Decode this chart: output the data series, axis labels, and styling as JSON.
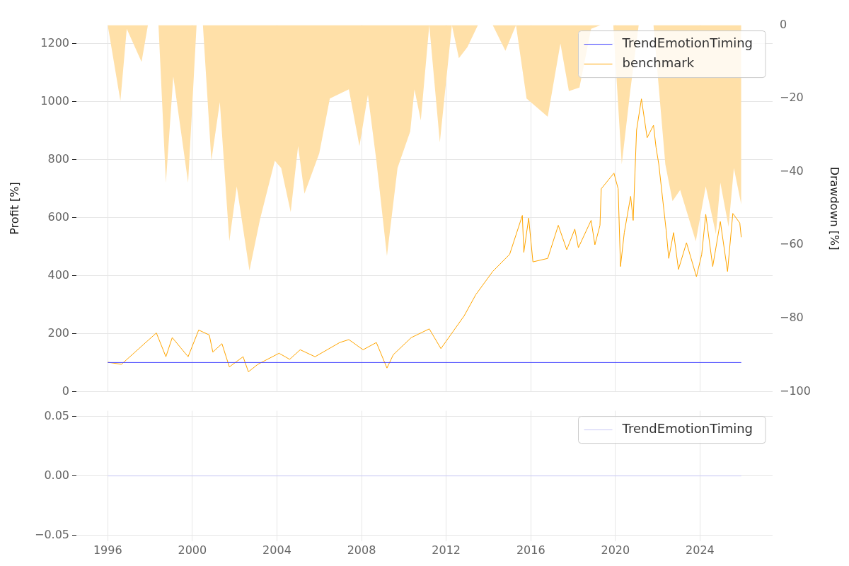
{
  "chart_data": [
    {
      "type": "line",
      "ylabel": "Profit [%]",
      "y2label": "Drawdown [%]",
      "xlim": [
        1994.52,
        2027.43
      ],
      "xticks": [
        1996,
        2000,
        2004,
        2008,
        2012,
        2016,
        2020,
        2024
      ],
      "ylim": [
        0,
        1263
      ],
      "yticks": [
        0,
        200,
        400,
        600,
        800,
        1000,
        1200
      ],
      "y2lim": [
        -100,
        0
      ],
      "y2ticks": [
        {
          "value": -100,
          "label": "−100"
        },
        {
          "value": -80,
          "label": "−80"
        },
        {
          "value": -60,
          "label": "−60"
        },
        {
          "value": -40,
          "label": "−40"
        },
        {
          "value": -20,
          "label": "−20"
        },
        0
      ],
      "grid": true,
      "legend": "top right",
      "tick_labels": "y",
      "series": [
        {
          "type": "area",
          "axis": "y2",
          "color": "#ffe0a8",
          "x": [
            1996.0,
            1996.6,
            1996.9,
            1997.6,
            1997.9,
            1998.4,
            1998.75,
            1999.1,
            1999.8,
            2000.2,
            2000.5,
            2000.9,
            2001.3,
            2001.75,
            2002.1,
            2002.7,
            2003.2,
            2003.9,
            2004.2,
            2004.65,
            2005.0,
            2005.3,
            2006.0,
            2006.5,
            2007.4,
            2007.9,
            2008.3,
            2008.7,
            2009.2,
            2009.7,
            2010.3,
            2010.5,
            2010.8,
            2011.2,
            2011.7,
            2012.27,
            2012.6,
            2013.0,
            2013.5,
            2014.2,
            2014.8,
            2015.3,
            2015.8,
            2016.8,
            2017.4,
            2017.8,
            2018.3,
            2018.85,
            2019.3,
            2019.9,
            2020.3,
            2020.7,
            2021.1,
            2021.8,
            2022.36,
            2022.7,
            2023.06,
            2023.8,
            2024.27,
            2024.75,
            2024.96,
            2025.35,
            2025.6,
            2025.95
          ],
          "values": [
            0,
            -20.7,
            -1,
            -10,
            0,
            0,
            -43,
            -14,
            -43,
            0,
            0,
            -37,
            -21,
            -59,
            -44,
            -67,
            -53,
            -37,
            -39,
            -51,
            -33,
            -46,
            -35,
            -20,
            -17.5,
            -33,
            -19,
            -37,
            -63,
            -39,
            -29,
            -17.5,
            -26,
            0,
            -32,
            0,
            -9,
            -6,
            0,
            0,
            -7,
            0,
            -20,
            -25,
            -5,
            -18,
            -17,
            -1,
            0,
            0,
            -38,
            -18,
            0,
            0,
            -38,
            -48,
            -45,
            -59,
            -44,
            -57,
            -43,
            -55,
            -39,
            -49
          ]
        },
        {
          "name": "TrendEmotionTiming",
          "color": "#4444ff",
          "x": [
            1996.0,
            2025.95
          ],
          "values": [
            100,
            100
          ]
        },
        {
          "name": "benchmark",
          "color": "#ffa500",
          "x": [
            1996.0,
            1996.65,
            1998.3,
            1998.75,
            1999.05,
            1999.8,
            2000.3,
            2000.8,
            2000.97,
            2001.4,
            2001.75,
            2002.4,
            2002.65,
            2003.1,
            2004.1,
            2004.6,
            2005.1,
            2005.8,
            2006.97,
            2007.4,
            2008.07,
            2008.7,
            2009.2,
            2009.5,
            2010.35,
            2011.2,
            2011.75,
            2012.85,
            2013.4,
            2014.2,
            2015.0,
            2015.6,
            2015.67,
            2015.9,
            2016.1,
            2016.8,
            2017.3,
            2017.7,
            2018.08,
            2018.25,
            2018.85,
            2019.03,
            2019.27,
            2019.33,
            2019.93,
            2020.13,
            2020.24,
            2020.42,
            2020.72,
            2020.84,
            2021.0,
            2021.23,
            2021.5,
            2021.8,
            2021.92,
            2022.05,
            2022.4,
            2022.52,
            2022.75,
            2022.98,
            2023.36,
            2023.83,
            2024.08,
            2024.27,
            2024.6,
            2024.96,
            2025.3,
            2025.55,
            2025.88,
            2025.95
          ],
          "values": [
            101,
            94,
            202,
            120,
            186,
            120,
            212,
            195,
            136,
            165,
            85,
            120,
            68,
            94,
            132,
            111,
            144,
            120,
            169,
            179,
            144,
            169,
            81,
            127,
            186,
            216,
            148,
            261,
            334,
            414,
            473,
            607,
            480,
            598,
            447,
            459,
            573,
            489,
            560,
            496,
            590,
            506,
            573,
            699,
            753,
            699,
            431,
            548,
            673,
            590,
            901,
            1009,
            875,
            918,
            842,
            784,
            555,
            459,
            548,
            421,
            513,
            396,
            473,
            611,
            431,
            586,
            414,
            614,
            581,
            532
          ]
        }
      ]
    },
    {
      "type": "line",
      "xlim": [
        1994.52,
        2027.43
      ],
      "xticks": [
        1996,
        2000,
        2004,
        2008,
        2012,
        2016,
        2020,
        2024
      ],
      "ylim": [
        -0.055,
        0.055
      ],
      "yticks": [
        {
          "value": -0.05,
          "label": "−0.05"
        },
        {
          "value": 0,
          "label": "0.00"
        },
        {
          "value": 0.05,
          "label": "0.05"
        }
      ],
      "grid": true,
      "legend": "top right",
      "series": [
        {
          "name": "TrendEmotionTiming",
          "color": "#ccccf7",
          "x": [
            1996.0,
            2025.95
          ],
          "values": [
            0,
            0
          ]
        }
      ]
    }
  ]
}
